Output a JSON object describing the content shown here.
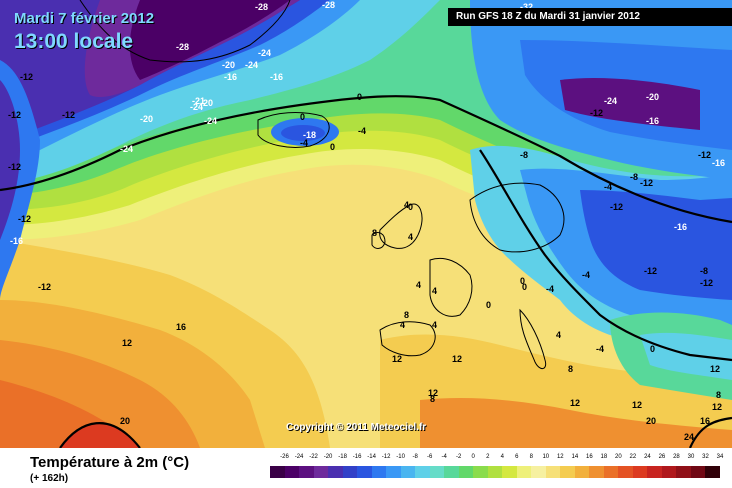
{
  "header": {
    "date": "Mardi 7 février 2012",
    "hour": "13:00 locale",
    "run": "Run GFS 18 Z du Mardi 31 janvier 2012"
  },
  "copyright": "Copyright © 2011 Meteociel.fr",
  "legend": {
    "title": "Température à 2m (°C)",
    "subtitle": "(+ 162h)",
    "ticks": [
      "-26",
      "-24",
      "-22",
      "-20",
      "-18",
      "-16",
      "-14",
      "-12",
      "-10",
      "-8",
      "-6",
      "-4",
      "-2",
      "0",
      "2",
      "4",
      "6",
      "8",
      "10",
      "12",
      "14",
      "16",
      "18",
      "20",
      "22",
      "24",
      "26",
      "28",
      "30",
      "32",
      "34"
    ],
    "colors": [
      "#3a0046",
      "#4b0066",
      "#5c1080",
      "#6e2a9c",
      "#4a2fb0",
      "#3240c8",
      "#2a55e0",
      "#2e78f0",
      "#3a98f5",
      "#4ab5f0",
      "#5fd0e8",
      "#66dcc8",
      "#58d89a",
      "#62d86a",
      "#8adc4c",
      "#b0e040",
      "#d4e840",
      "#eef07a",
      "#f6f0a0",
      "#f6e078",
      "#f4cc50",
      "#f2b03c",
      "#ef9030",
      "#ea7028",
      "#e45224",
      "#dc3a20",
      "#c82420",
      "#b0181c",
      "#901018",
      "#700814",
      "#300008"
    ]
  },
  "isotherm_labels": [
    {
      "t": "-28"
    },
    {
      "t": "-28"
    },
    {
      "t": "-28"
    },
    {
      "t": "-32"
    },
    {
      "t": "-24"
    },
    {
      "t": "-24"
    },
    {
      "t": "-20"
    },
    {
      "t": "-16"
    },
    {
      "t": "-12"
    },
    {
      "t": "-12"
    },
    {
      "t": "-20"
    },
    {
      "t": "-24"
    },
    {
      "t": "-12"
    },
    {
      "t": "-12"
    },
    {
      "t": "-16"
    },
    {
      "t": "-12"
    },
    {
      "t": "-12"
    },
    {
      "t": "0"
    },
    {
      "t": "-16"
    },
    {
      "t": "-20"
    },
    {
      "t": "-24"
    },
    {
      "t": "-21"
    },
    {
      "t": "-24"
    },
    {
      "t": "0"
    },
    {
      "t": "-18"
    },
    {
      "t": "-4"
    },
    {
      "t": "-4"
    },
    {
      "t": "0"
    },
    {
      "t": "-24"
    },
    {
      "t": "-20"
    },
    {
      "t": "-12"
    },
    {
      "t": "-16"
    },
    {
      "t": "-8"
    },
    {
      "t": "-12"
    },
    {
      "t": "-16"
    },
    {
      "t": "-8"
    },
    {
      "t": "-12"
    },
    {
      "t": "-4"
    },
    {
      "t": "-12"
    },
    {
      "t": "-16"
    },
    {
      "t": "-4"
    },
    {
      "t": "-12"
    },
    {
      "t": "-12"
    },
    {
      "t": "0"
    },
    {
      "t": "-4"
    },
    {
      "t": "-8"
    },
    {
      "t": "16"
    },
    {
      "t": "12"
    },
    {
      "t": "20"
    },
    {
      "t": "12"
    },
    {
      "t": "12"
    },
    {
      "t": "8"
    },
    {
      "t": "12"
    },
    {
      "t": "12"
    },
    {
      "t": "16"
    },
    {
      "t": "20"
    },
    {
      "t": "24"
    },
    {
      "t": "12"
    },
    {
      "t": "8"
    },
    {
      "t": "4"
    },
    {
      "t": "0"
    },
    {
      "t": "8"
    },
    {
      "t": "4"
    },
    {
      "t": "4"
    },
    {
      "t": "4"
    },
    {
      "t": "8"
    },
    {
      "t": "4"
    },
    {
      "t": "0"
    },
    {
      "t": "4"
    },
    {
      "t": "0"
    },
    {
      "t": "0"
    },
    {
      "t": "-4"
    },
    {
      "t": "12"
    },
    {
      "t": "12"
    },
    {
      "t": "8"
    },
    {
      "t": "4"
    },
    {
      "t": "8"
    }
  ]
}
